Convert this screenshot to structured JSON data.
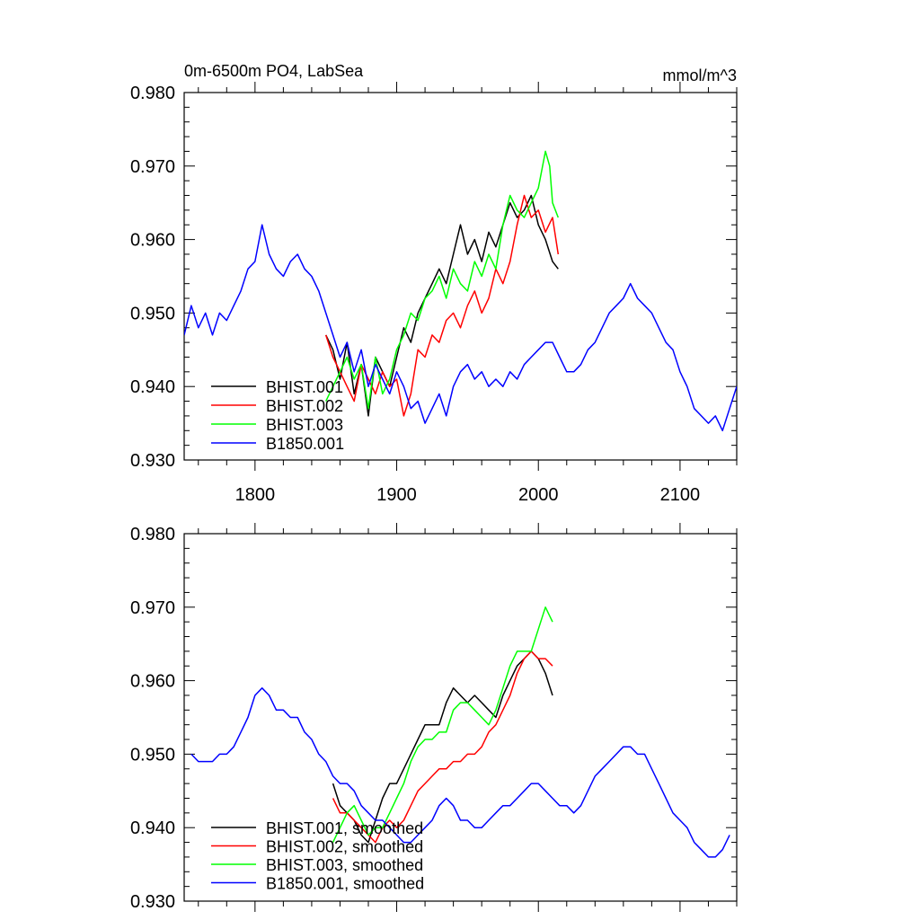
{
  "chart_data": [
    {
      "type": "line",
      "title": "0m-6500m PO4, LabSea",
      "units": "mmol/m^3",
      "xlim": [
        1750,
        2140
      ],
      "ylim": [
        0.93,
        0.98
      ],
      "xticks": [
        1800,
        1900,
        2000,
        2100
      ],
      "xtick_labels": [
        "1800",
        "1900",
        "2000",
        "2100"
      ],
      "yticks": [
        0.93,
        0.94,
        0.95,
        0.96,
        0.97,
        0.98
      ],
      "ytick_labels": [
        "0.930",
        "0.940",
        "0.950",
        "0.960",
        "0.970",
        "0.980"
      ],
      "legend_position": "bottom-left",
      "series": [
        {
          "name": "BHIST.001",
          "color": "#000000",
          "x": [
            1850,
            1855,
            1860,
            1865,
            1870,
            1875,
            1880,
            1885,
            1890,
            1895,
            1900,
            1905,
            1910,
            1915,
            1920,
            1925,
            1930,
            1935,
            1940,
            1945,
            1950,
            1955,
            1960,
            1965,
            1970,
            1975,
            1980,
            1985,
            1990,
            1995,
            2000,
            2005,
            2010,
            2014
          ],
          "y": [
            0.947,
            0.945,
            0.941,
            0.946,
            0.939,
            0.943,
            0.936,
            0.944,
            0.942,
            0.94,
            0.944,
            0.948,
            0.946,
            0.95,
            0.952,
            0.954,
            0.956,
            0.954,
            0.958,
            0.962,
            0.958,
            0.96,
            0.957,
            0.961,
            0.959,
            0.962,
            0.965,
            0.963,
            0.964,
            0.966,
            0.962,
            0.96,
            0.957,
            0.956
          ]
        },
        {
          "name": "BHIST.002",
          "color": "#ff0000",
          "x": [
            1850,
            1855,
            1860,
            1865,
            1870,
            1875,
            1880,
            1885,
            1890,
            1895,
            1900,
            1905,
            1910,
            1915,
            1920,
            1925,
            1930,
            1935,
            1940,
            1945,
            1950,
            1955,
            1960,
            1965,
            1970,
            1975,
            1980,
            1985,
            1990,
            1995,
            2000,
            2005,
            2010,
            2014
          ],
          "y": [
            0.947,
            0.944,
            0.942,
            0.94,
            0.938,
            0.943,
            0.941,
            0.939,
            0.942,
            0.94,
            0.941,
            0.936,
            0.939,
            0.945,
            0.944,
            0.947,
            0.946,
            0.949,
            0.95,
            0.948,
            0.951,
            0.953,
            0.95,
            0.952,
            0.956,
            0.954,
            0.957,
            0.962,
            0.966,
            0.963,
            0.964,
            0.961,
            0.963,
            0.958
          ]
        },
        {
          "name": "BHIST.003",
          "color": "#00ff00",
          "x": [
            1850,
            1855,
            1860,
            1865,
            1870,
            1875,
            1880,
            1885,
            1890,
            1895,
            1900,
            1905,
            1910,
            1915,
            1920,
            1925,
            1930,
            1935,
            1940,
            1945,
            1950,
            1955,
            1960,
            1965,
            1970,
            1975,
            1980,
            1985,
            1990,
            1995,
            2000,
            2005,
            2008,
            2010,
            2014
          ],
          "y": [
            0.938,
            0.94,
            0.942,
            0.944,
            0.941,
            0.943,
            0.937,
            0.944,
            0.939,
            0.941,
            0.945,
            0.947,
            0.95,
            0.949,
            0.952,
            0.953,
            0.955,
            0.952,
            0.956,
            0.954,
            0.953,
            0.957,
            0.955,
            0.958,
            0.956,
            0.962,
            0.966,
            0.964,
            0.963,
            0.965,
            0.967,
            0.972,
            0.97,
            0.965,
            0.963
          ]
        },
        {
          "name": "B1850.001",
          "color": "#0000ff",
          "x": [
            1750,
            1755,
            1760,
            1765,
            1770,
            1775,
            1780,
            1785,
            1790,
            1795,
            1800,
            1805,
            1810,
            1815,
            1820,
            1825,
            1830,
            1835,
            1840,
            1845,
            1850,
            1855,
            1860,
            1865,
            1870,
            1875,
            1880,
            1885,
            1890,
            1895,
            1900,
            1905,
            1910,
            1915,
            1920,
            1925,
            1930,
            1935,
            1940,
            1945,
            1950,
            1955,
            1960,
            1965,
            1970,
            1975,
            1980,
            1985,
            1990,
            1995,
            2000,
            2005,
            2010,
            2015,
            2020,
            2025,
            2030,
            2035,
            2040,
            2045,
            2050,
            2055,
            2060,
            2065,
            2070,
            2075,
            2080,
            2085,
            2090,
            2095,
            2100,
            2105,
            2110,
            2115,
            2120,
            2125,
            2130,
            2135,
            2140
          ],
          "y": [
            0.947,
            0.951,
            0.948,
            0.95,
            0.947,
            0.95,
            0.949,
            0.951,
            0.953,
            0.956,
            0.957,
            0.962,
            0.958,
            0.956,
            0.955,
            0.957,
            0.958,
            0.956,
            0.955,
            0.953,
            0.95,
            0.947,
            0.944,
            0.946,
            0.942,
            0.945,
            0.94,
            0.943,
            0.941,
            0.939,
            0.942,
            0.94,
            0.937,
            0.938,
            0.935,
            0.937,
            0.939,
            0.936,
            0.94,
            0.942,
            0.943,
            0.941,
            0.942,
            0.94,
            0.941,
            0.94,
            0.942,
            0.941,
            0.943,
            0.944,
            0.945,
            0.946,
            0.946,
            0.944,
            0.942,
            0.942,
            0.943,
            0.945,
            0.946,
            0.948,
            0.95,
            0.951,
            0.952,
            0.954,
            0.952,
            0.951,
            0.95,
            0.948,
            0.946,
            0.945,
            0.942,
            0.94,
            0.937,
            0.936,
            0.935,
            0.936,
            0.934,
            0.937,
            0.94
          ]
        }
      ]
    },
    {
      "type": "line",
      "title": "",
      "units": "",
      "xlim": [
        1750,
        2140
      ],
      "ylim": [
        0.93,
        0.98
      ],
      "xticks": [
        1800,
        1900,
        2000,
        2100
      ],
      "xtick_labels": [],
      "yticks": [
        0.93,
        0.94,
        0.95,
        0.96,
        0.97,
        0.98
      ],
      "ytick_labels": [
        "0.930",
        "0.940",
        "0.950",
        "0.960",
        "0.970",
        "0.980"
      ],
      "legend_position": "bottom-left",
      "series": [
        {
          "name": "BHIST.001, smoothed",
          "color": "#000000",
          "x": [
            1855,
            1860,
            1865,
            1870,
            1875,
            1880,
            1885,
            1890,
            1895,
            1900,
            1905,
            1910,
            1915,
            1920,
            1925,
            1930,
            1935,
            1940,
            1945,
            1950,
            1955,
            1960,
            1965,
            1970,
            1975,
            1980,
            1985,
            1990,
            1995,
            2000,
            2005,
            2010
          ],
          "y": [
            0.946,
            0.943,
            0.942,
            0.941,
            0.939,
            0.938,
            0.941,
            0.944,
            0.946,
            0.946,
            0.948,
            0.95,
            0.952,
            0.954,
            0.954,
            0.954,
            0.957,
            0.959,
            0.958,
            0.957,
            0.958,
            0.957,
            0.956,
            0.955,
            0.958,
            0.96,
            0.962,
            0.963,
            0.964,
            0.963,
            0.961,
            0.958
          ]
        },
        {
          "name": "BHIST.002, smoothed",
          "color": "#ff0000",
          "x": [
            1855,
            1860,
            1865,
            1870,
            1875,
            1880,
            1885,
            1890,
            1895,
            1900,
            1905,
            1910,
            1915,
            1920,
            1925,
            1930,
            1935,
            1940,
            1945,
            1950,
            1955,
            1960,
            1965,
            1970,
            1975,
            1980,
            1985,
            1990,
            1995,
            2000,
            2005,
            2010
          ],
          "y": [
            0.944,
            0.942,
            0.942,
            0.941,
            0.94,
            0.939,
            0.938,
            0.94,
            0.941,
            0.94,
            0.941,
            0.943,
            0.945,
            0.946,
            0.947,
            0.948,
            0.948,
            0.949,
            0.949,
            0.95,
            0.95,
            0.951,
            0.953,
            0.954,
            0.956,
            0.958,
            0.961,
            0.963,
            0.964,
            0.963,
            0.963,
            0.962
          ]
        },
        {
          "name": "BHIST.003, smoothed",
          "color": "#00ff00",
          "x": [
            1855,
            1860,
            1865,
            1870,
            1875,
            1880,
            1885,
            1890,
            1895,
            1900,
            1905,
            1910,
            1915,
            1920,
            1925,
            1930,
            1935,
            1940,
            1945,
            1950,
            1955,
            1960,
            1965,
            1970,
            1975,
            1980,
            1985,
            1990,
            1995,
            2000,
            2005,
            2010
          ],
          "y": [
            0.938,
            0.94,
            0.942,
            0.943,
            0.941,
            0.939,
            0.94,
            0.94,
            0.942,
            0.944,
            0.946,
            0.949,
            0.951,
            0.952,
            0.952,
            0.953,
            0.953,
            0.956,
            0.957,
            0.957,
            0.956,
            0.955,
            0.954,
            0.956,
            0.959,
            0.962,
            0.964,
            0.964,
            0.964,
            0.967,
            0.97,
            0.968
          ]
        },
        {
          "name": "B1850.001, smoothed",
          "color": "#0000ff",
          "x": [
            1755,
            1760,
            1765,
            1770,
            1775,
            1780,
            1785,
            1790,
            1795,
            1800,
            1805,
            1810,
            1815,
            1820,
            1825,
            1830,
            1835,
            1840,
            1845,
            1850,
            1855,
            1860,
            1865,
            1870,
            1875,
            1880,
            1885,
            1890,
            1895,
            1900,
            1905,
            1910,
            1915,
            1920,
            1925,
            1930,
            1935,
            1940,
            1945,
            1950,
            1955,
            1960,
            1965,
            1970,
            1975,
            1980,
            1985,
            1990,
            1995,
            2000,
            2005,
            2010,
            2015,
            2020,
            2025,
            2030,
            2035,
            2040,
            2045,
            2050,
            2055,
            2060,
            2065,
            2070,
            2075,
            2080,
            2085,
            2090,
            2095,
            2100,
            2105,
            2110,
            2115,
            2120,
            2125,
            2130,
            2135
          ],
          "y": [
            0.95,
            0.949,
            0.949,
            0.949,
            0.95,
            0.95,
            0.951,
            0.953,
            0.955,
            0.958,
            0.959,
            0.958,
            0.956,
            0.956,
            0.955,
            0.955,
            0.953,
            0.952,
            0.95,
            0.949,
            0.947,
            0.946,
            0.946,
            0.945,
            0.943,
            0.942,
            0.941,
            0.941,
            0.94,
            0.939,
            0.938,
            0.938,
            0.939,
            0.94,
            0.941,
            0.943,
            0.944,
            0.943,
            0.941,
            0.941,
            0.94,
            0.94,
            0.941,
            0.942,
            0.943,
            0.943,
            0.944,
            0.945,
            0.946,
            0.946,
            0.945,
            0.944,
            0.943,
            0.943,
            0.942,
            0.943,
            0.945,
            0.947,
            0.948,
            0.949,
            0.95,
            0.951,
            0.951,
            0.95,
            0.95,
            0.948,
            0.946,
            0.944,
            0.942,
            0.941,
            0.94,
            0.938,
            0.937,
            0.936,
            0.936,
            0.937,
            0.939
          ]
        }
      ]
    }
  ]
}
